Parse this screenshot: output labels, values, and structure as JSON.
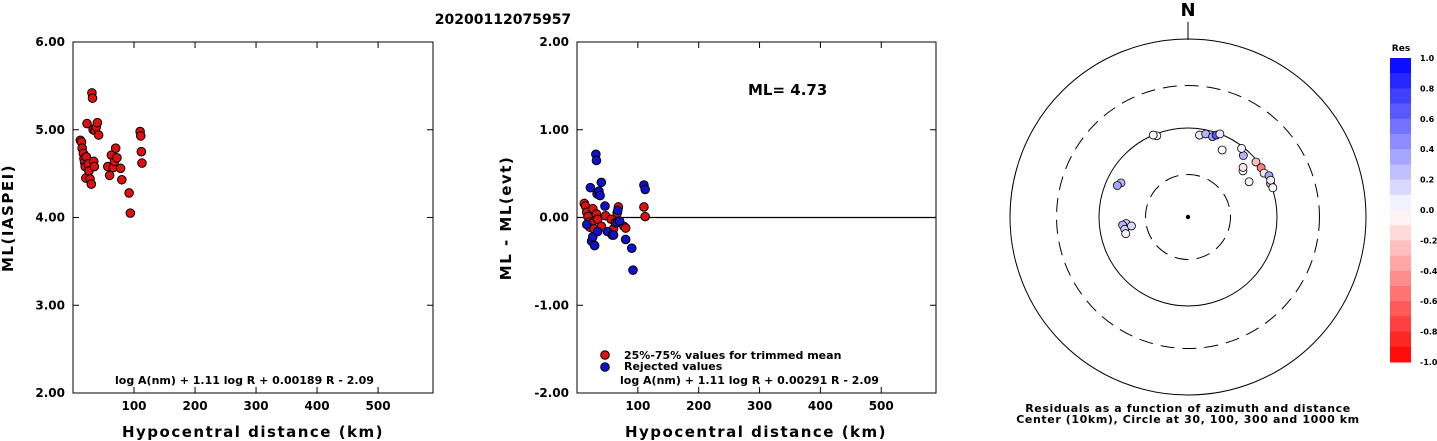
{
  "title": "20200112075957",
  "chart_data": [
    {
      "type": "scatter",
      "xlabel": "Hypocentral distance (km)",
      "ylabel": "ML(IASPEI)",
      "xlim": [
        0,
        590
      ],
      "ylim": [
        2.0,
        6.0
      ],
      "xticks": [
        "100",
        "200",
        "300",
        "400",
        "500"
      ],
      "yticks": [
        "2.00",
        "3.00",
        "4.00",
        "5.00",
        "6.00"
      ],
      "formula": "log A(nm) + 1.11 log R + 0.00189 R - 2.09",
      "color": "#dd1111",
      "points": [
        [
          12,
          4.88
        ],
        [
          14,
          4.86
        ],
        [
          15,
          4.79
        ],
        [
          17,
          4.73
        ],
        [
          18,
          4.67
        ],
        [
          19,
          4.63
        ],
        [
          20,
          4.58
        ],
        [
          21,
          4.45
        ],
        [
          22,
          4.69
        ],
        [
          23,
          5.07
        ],
        [
          25,
          4.61
        ],
        [
          26,
          4.53
        ],
        [
          28,
          4.44
        ],
        [
          30,
          4.38
        ],
        [
          31,
          5.42
        ],
        [
          32,
          5.36
        ],
        [
          33,
          5.0
        ],
        [
          34,
          4.64
        ],
        [
          35,
          4.58
        ],
        [
          36,
          4.99
        ],
        [
          38,
          5.03
        ],
        [
          40,
          5.08
        ],
        [
          42,
          4.94
        ],
        [
          57,
          4.58
        ],
        [
          60,
          4.48
        ],
        [
          63,
          4.71
        ],
        [
          66,
          4.57
        ],
        [
          68,
          4.64
        ],
        [
          70,
          4.79
        ],
        [
          72,
          4.68
        ],
        [
          78,
          4.56
        ],
        [
          80,
          4.43
        ],
        [
          92,
          4.28
        ],
        [
          94,
          4.05
        ],
        [
          110,
          4.98
        ],
        [
          111,
          4.93
        ],
        [
          112,
          4.75
        ],
        [
          113,
          4.62
        ]
      ]
    },
    {
      "type": "scatter",
      "xlabel": "Hypocentral distance (km)",
      "ylabel": "ML - ML(evt)",
      "xlim": [
        0,
        590
      ],
      "ylim": [
        -2.0,
        2.0
      ],
      "xticks": [
        "100",
        "200",
        "300",
        "400",
        "500"
      ],
      "yticks": [
        "-2.00",
        "-1.00",
        "0.00",
        "1.00",
        "2.00"
      ],
      "annotation": "ML= 4.73",
      "formula": "log A(nm) + 1.11 log R + 0.00291 R - 2.09",
      "reference_line": 0.0,
      "legend": [
        {
          "label": "25%-75% values for trimmed mean",
          "color": "#dd1111"
        },
        {
          "label": "Rejected values",
          "color": "#1111cc"
        }
      ],
      "series": [
        {
          "name": "25%-75% values for trimmed mean",
          "color": "#dd1111",
          "points": [
            [
              12,
              0.16
            ],
            [
              14,
              0.13
            ],
            [
              16,
              0.06
            ],
            [
              18,
              0.01
            ],
            [
              20,
              -0.05
            ],
            [
              21,
              -0.11
            ],
            [
              24,
              -0.07
            ],
            [
              26,
              0.1
            ],
            [
              28,
              -0.13
            ],
            [
              32,
              0.04
            ],
            [
              34,
              -0.02
            ],
            [
              40,
              -0.1
            ],
            [
              47,
              0.02
            ],
            [
              56,
              -0.02
            ],
            [
              60,
              -0.13
            ],
            [
              63,
              -0.06
            ],
            [
              66,
              0.05
            ],
            [
              68,
              0.12
            ],
            [
              77,
              -0.1
            ],
            [
              80,
              -0.12
            ],
            [
              110,
              0.12
            ],
            [
              112,
              0.01
            ]
          ]
        },
        {
          "name": "Rejected values",
          "color": "#1111cc",
          "points": [
            [
              16,
              -0.08
            ],
            [
              22,
              0.34
            ],
            [
              24,
              -0.27
            ],
            [
              26,
              -0.22
            ],
            [
              29,
              -0.32
            ],
            [
              31,
              0.72
            ],
            [
              32,
              0.65
            ],
            [
              33,
              0.27
            ],
            [
              34,
              -0.16
            ],
            [
              36,
              0.3
            ],
            [
              38,
              0.25
            ],
            [
              40,
              0.4
            ],
            [
              46,
              0.13
            ],
            [
              50,
              -0.16
            ],
            [
              58,
              -0.2
            ],
            [
              60,
              -0.2
            ],
            [
              66,
              -0.06
            ],
            [
              67,
              0.08
            ],
            [
              70,
              -0.04
            ],
            [
              80,
              -0.25
            ],
            [
              90,
              -0.35
            ],
            [
              92,
              -0.6
            ],
            [
              110,
              0.37
            ],
            [
              112,
              0.32
            ]
          ]
        }
      ]
    },
    {
      "type": "scatter",
      "subtype": "polar-residuals",
      "north_label": "N",
      "caption_lines": [
        "Residuals as a function of azimuth and distance",
        "Center (10km), Circle at 30, 100, 300 and 1000 km"
      ],
      "circles_km": [
        30,
        100,
        300,
        1000
      ],
      "colorbar": {
        "title": "Res",
        "labels": [
          "1.0",
          "0.8",
          "0.6",
          "0.4",
          "0.2",
          "0.0",
          "-0.2",
          "-0.4",
          "-0.6",
          "-0.8",
          "-1.0"
        ],
        "max_color": "#0000ee",
        "min_color": "#ff0000"
      },
      "stations": [
        {
          "az": 339,
          "dist_km": 95,
          "res": -0.05
        },
        {
          "az": 337,
          "dist_km": 100,
          "res": -0.03
        },
        {
          "az": 8,
          "dist_km": 85,
          "res": 0.08
        },
        {
          "az": 12,
          "dist_km": 90,
          "res": 0.3
        },
        {
          "az": 17,
          "dist_km": 88,
          "res": 0.38
        },
        {
          "az": 19,
          "dist_km": 94,
          "res": 0.65
        },
        {
          "az": 21,
          "dist_km": 100,
          "res": 0.1
        },
        {
          "az": 42,
          "dist_km": 85,
          "res": 0.3
        },
        {
          "az": 38,
          "dist_km": 95,
          "res": 0.05
        },
        {
          "az": 27,
          "dist_km": 70,
          "res": 0.02
        },
        {
          "az": 51,
          "dist_km": 96,
          "res": -0.25
        },
        {
          "az": 56,
          "dist_km": 98,
          "res": -0.5
        },
        {
          "az": 60,
          "dist_km": 97,
          "res": -0.1
        },
        {
          "az": 68,
          "dist_km": 100,
          "res": -0.35
        },
        {
          "az": 63,
          "dist_km": 105,
          "res": 0.35
        },
        {
          "az": 66,
          "dist_km": 104,
          "res": 0.05
        },
        {
          "az": 71,
          "dist_km": 102,
          "res": 0.0
        },
        {
          "az": 50,
          "dist_km": 64,
          "res": 0.02
        },
        {
          "az": 48,
          "dist_km": 68,
          "res": -0.1
        },
        {
          "az": 60,
          "dist_km": 62,
          "res": 0.05
        },
        {
          "az": 297,
          "dist_km": 70,
          "res": 0.3
        },
        {
          "az": 294,
          "dist_km": 74,
          "res": 0.35
        },
        {
          "az": 264,
          "dist_km": 50,
          "res": 0.2
        },
        {
          "az": 263,
          "dist_km": 55,
          "res": 0.3
        },
        {
          "az": 259,
          "dist_km": 53,
          "res": 0.2
        },
        {
          "az": 255,
          "dist_km": 53,
          "res": 0.05
        },
        {
          "az": 261,
          "dist_km": 44,
          "res": 0.15
        }
      ]
    }
  ]
}
